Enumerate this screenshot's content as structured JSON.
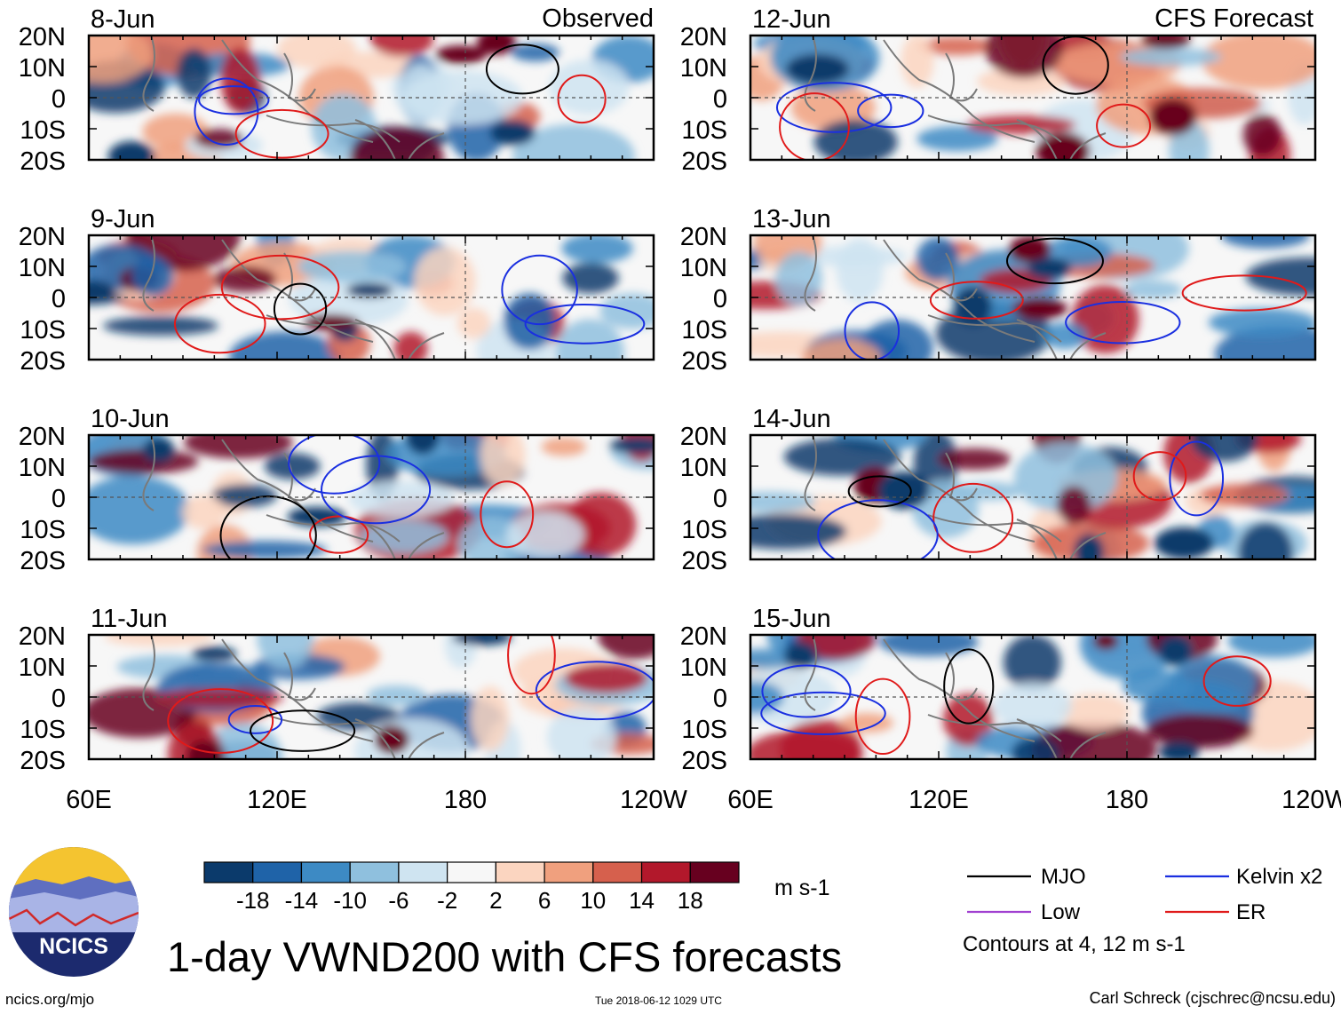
{
  "figure": {
    "title": "1-day VWND200 with CFS forecasts",
    "source_url": "ncics.org/mjo",
    "timestamp": "Tue 2018-06-12 1029 UTC",
    "author": "Carl Schreck (cjschrec@ncsu.edu)",
    "logo_text": "NCICS"
  },
  "column_titles": {
    "observed": "Observed",
    "forecast": "CFS Forecast"
  },
  "colorbar": {
    "units": "m s-1",
    "tick_labels": [
      "-18",
      "-14",
      "-10",
      "-6",
      "-2",
      "2",
      "6",
      "10",
      "14",
      "18"
    ],
    "colors": [
      "#0b3a6b",
      "#1f63a8",
      "#3d8ac4",
      "#8fc0de",
      "#cfe4f1",
      "#f7f7f7",
      "#fbd5c0",
      "#f0a07e",
      "#d6604d",
      "#b2182b",
      "#67001f"
    ]
  },
  "legend": {
    "items": [
      {
        "label": "MJO",
        "color": "#000000"
      },
      {
        "label": "Kelvin x2",
        "color": "#1a2fe0"
      },
      {
        "label": "Low",
        "color": "#a040d0"
      },
      {
        "label": "ER",
        "color": "#e01a1a"
      }
    ],
    "contour_note": "Contours at 4, 12 m s-1"
  },
  "chart_data": {
    "type": "heatmap",
    "variable": "VWND200",
    "title": "1-day VWND200 with CFS forecasts",
    "units": "m s-1",
    "x_axis": {
      "ticks": [
        "60E",
        "120E",
        "180",
        "120W"
      ],
      "range_deg_east": [
        60,
        240
      ]
    },
    "y_axis": {
      "ticks": [
        "20N",
        "10N",
        "0",
        "10S",
        "20S"
      ],
      "range_deg": [
        -20,
        20
      ]
    },
    "panels": [
      {
        "date": "8-Jun",
        "column": "observed"
      },
      {
        "date": "9-Jun",
        "column": "observed"
      },
      {
        "date": "10-Jun",
        "column": "observed"
      },
      {
        "date": "11-Jun",
        "column": "observed"
      },
      {
        "date": "12-Jun",
        "column": "forecast"
      },
      {
        "date": "13-Jun",
        "column": "forecast"
      },
      {
        "date": "14-Jun",
        "column": "forecast"
      },
      {
        "date": "15-Jun",
        "column": "forecast"
      }
    ]
  }
}
